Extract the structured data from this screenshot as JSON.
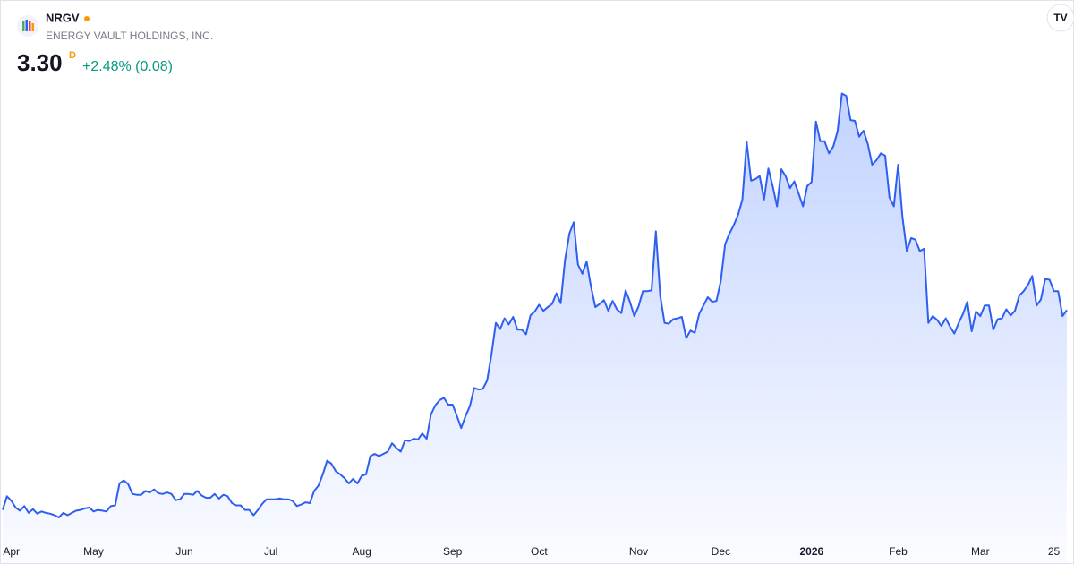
{
  "chart_data": {
    "type": "area",
    "title": "NRGV",
    "subtitle": "ENERGY VAULT HOLDINGS, INC.",
    "price": "3.30",
    "price_flag": "D",
    "change": "+2.48% (0.08)",
    "color": "#2f5ff0",
    "ylim": [
      0.3,
      6.45
    ],
    "xlim": [
      0,
      246
    ],
    "xticks": [
      {
        "value": 2,
        "label": "Apr"
      },
      {
        "value": 21,
        "label": "May"
      },
      {
        "value": 42,
        "label": "Jun"
      },
      {
        "value": 62,
        "label": "Jul"
      },
      {
        "value": 83,
        "label": "Aug"
      },
      {
        "value": 104,
        "label": "Sep"
      },
      {
        "value": 124,
        "label": "Oct"
      },
      {
        "value": 147,
        "label": "Nov"
      },
      {
        "value": 166,
        "label": "Dec"
      },
      {
        "value": 187,
        "label": "2026"
      },
      {
        "value": 207,
        "label": "Feb"
      },
      {
        "value": 226,
        "label": "Mar"
      },
      {
        "value": 243,
        "label": "25"
      }
    ],
    "values": [
      0.66,
      0.84,
      0.78,
      0.69,
      0.65,
      0.71,
      0.62,
      0.67,
      0.61,
      0.64,
      0.62,
      0.61,
      0.59,
      0.56,
      0.62,
      0.59,
      0.62,
      0.65,
      0.66,
      0.68,
      0.69,
      0.64,
      0.66,
      0.65,
      0.64,
      0.71,
      0.72,
      1.01,
      1.05,
      1.0,
      0.87,
      0.86,
      0.86,
      0.91,
      0.89,
      0.93,
      0.88,
      0.87,
      0.89,
      0.87,
      0.79,
      0.8,
      0.87,
      0.87,
      0.86,
      0.91,
      0.85,
      0.82,
      0.82,
      0.87,
      0.81,
      0.86,
      0.84,
      0.75,
      0.72,
      0.72,
      0.66,
      0.66,
      0.59,
      0.66,
      0.74,
      0.8,
      0.8,
      0.8,
      0.81,
      0.8,
      0.8,
      0.78,
      0.71,
      0.73,
      0.76,
      0.75,
      0.91,
      0.98,
      1.13,
      1.31,
      1.27,
      1.17,
      1.13,
      1.08,
      1.01,
      1.07,
      1.01,
      1.11,
      1.13,
      1.37,
      1.4,
      1.37,
      1.4,
      1.43,
      1.54,
      1.48,
      1.43,
      1.58,
      1.57,
      1.6,
      1.59,
      1.67,
      1.6,
      1.92,
      2.04,
      2.11,
      2.14,
      2.05,
      2.05,
      1.9,
      1.74,
      1.9,
      2.03,
      2.27,
      2.25,
      2.26,
      2.37,
      2.72,
      3.13,
      3.05,
      3.19,
      3.11,
      3.21,
      3.04,
      3.04,
      2.98,
      3.23,
      3.28,
      3.37,
      3.29,
      3.34,
      3.38,
      3.52,
      3.39,
      3.96,
      4.31,
      4.46,
      3.9,
      3.78,
      3.94,
      3.61,
      3.34,
      3.38,
      3.43,
      3.29,
      3.42,
      3.31,
      3.26,
      3.56,
      3.41,
      3.22,
      3.35,
      3.55,
      3.55,
      3.56,
      4.34,
      3.49,
      3.13,
      3.12,
      3.18,
      3.19,
      3.21,
      2.93,
      3.03,
      3.0,
      3.25,
      3.36,
      3.47,
      3.41,
      3.42,
      3.68,
      4.17,
      4.31,
      4.42,
      4.56,
      4.76,
      5.52,
      5.01,
      5.03,
      5.07,
      4.76,
      5.17,
      4.94,
      4.67,
      5.16,
      5.07,
      4.91,
      5.0,
      4.84,
      4.67,
      4.94,
      4.99,
      5.79,
      5.53,
      5.53,
      5.37,
      5.46,
      5.66,
      6.16,
      6.13,
      5.81,
      5.8,
      5.59,
      5.67,
      5.49,
      5.22,
      5.28,
      5.37,
      5.34,
      4.79,
      4.67,
      5.22,
      4.53,
      4.08,
      4.25,
      4.23,
      4.08,
      4.11,
      3.13,
      3.22,
      3.17,
      3.09,
      3.19,
      3.08,
      2.99,
      3.13,
      3.25,
      3.41,
      3.02,
      3.28,
      3.22,
      3.36,
      3.36,
      3.04,
      3.18,
      3.19,
      3.31,
      3.23,
      3.29,
      3.49,
      3.55,
      3.63,
      3.75,
      3.36,
      3.44,
      3.71,
      3.7,
      3.55,
      3.55,
      3.22,
      3.3
    ]
  }
}
